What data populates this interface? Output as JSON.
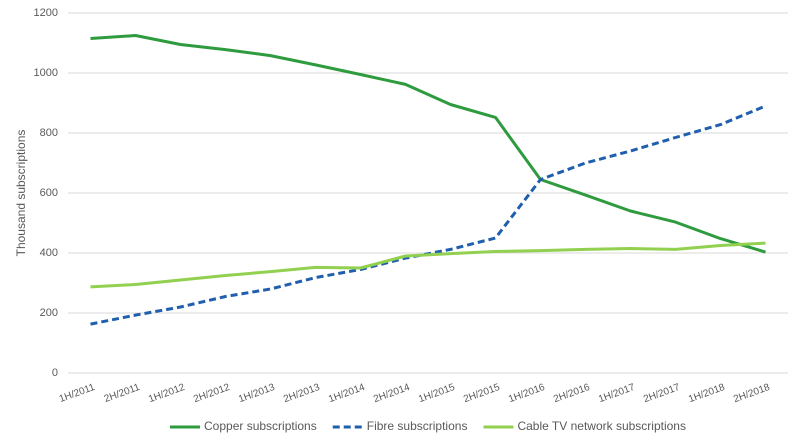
{
  "chart_data": {
    "type": "line",
    "y_label": "Thousand subscriptions",
    "categories": [
      "1H/2011",
      "2H/2011",
      "1H/2012",
      "2H/2012",
      "1H/2013",
      "2H/2013",
      "1H/2014",
      "2H/2014",
      "1H/2015",
      "2H/2015",
      "1H/2016",
      "2H/2016",
      "1H/2017",
      "2H/2017",
      "1H/2018",
      "2H/2018"
    ],
    "series": [
      {
        "name": "Copper subscriptions",
        "color": "#2e9b3e",
        "dashed": false,
        "values": [
          1115,
          1125,
          1095,
          1078,
          1058,
          1027,
          995,
          962,
          895,
          852,
          645,
          593,
          540,
          503,
          448,
          403
        ]
      },
      {
        "name": "Fibre subscriptions",
        "color": "#1f5fad",
        "dashed": true,
        "values": [
          163,
          193,
          220,
          255,
          280,
          318,
          345,
          383,
          412,
          450,
          645,
          700,
          740,
          785,
          828,
          890
        ]
      },
      {
        "name": "Cable TV network subscriptions",
        "color": "#92d050",
        "dashed": false,
        "values": [
          287,
          295,
          310,
          325,
          338,
          352,
          350,
          390,
          398,
          405,
          408,
          412,
          415,
          412,
          425,
          433
        ]
      }
    ],
    "ylim": [
      0,
      1200
    ],
    "yticks": [
      0,
      200,
      400,
      600,
      800,
      1000,
      1200
    ],
    "grid": true,
    "legend": "bottom"
  }
}
